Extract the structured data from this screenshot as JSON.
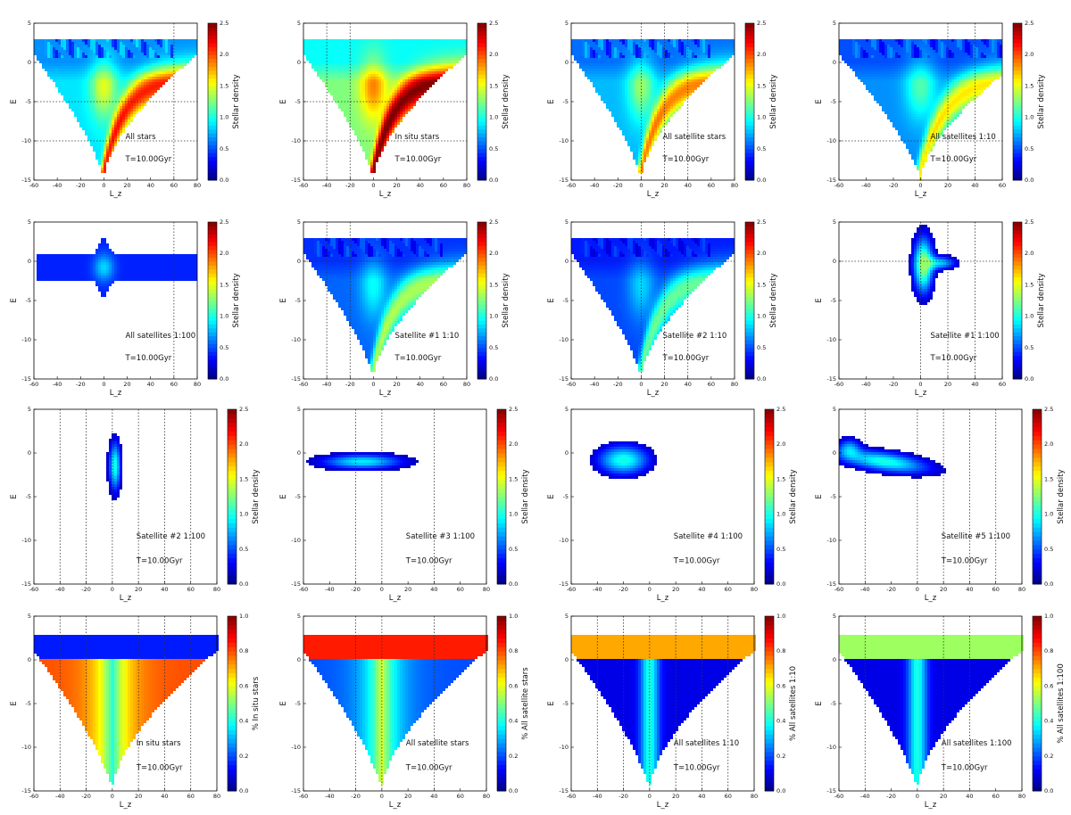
{
  "figure": {
    "chart_data": [
      {
        "type": "heatmap",
        "panel": 1,
        "title": "All stars",
        "time_label": "T=10.00Gyr",
        "xlabel": "L_z",
        "ylabel": "E",
        "xlim": [
          -60,
          80
        ],
        "ylim": [
          -15,
          5
        ],
        "xticks": [
          -60,
          -40,
          -20,
          0,
          20,
          40,
          60,
          80
        ],
        "yticks": [
          -15,
          -10,
          -5,
          0,
          5
        ],
        "colorbar_label": "Stellar density",
        "colorbar_range": [
          0,
          2.5
        ],
        "colorbar_ticks": [
          "0.0",
          "0.5",
          "1.0",
          "1.5",
          "2.0",
          "2.5"
        ],
        "vlines": [
          60
        ],
        "hlines": [
          -5,
          -10
        ],
        "shape": "fan",
        "bias": 0,
        "max_density": 2.5
      },
      {
        "type": "heatmap",
        "panel": 2,
        "title": "In situ stars",
        "time_label": "T=10.00Gyr",
        "xlabel": "L_z",
        "ylabel": "E",
        "xlim": [
          -60,
          80
        ],
        "ylim": [
          -15,
          5
        ],
        "xticks": [
          -60,
          -40,
          -20,
          0,
          20,
          40,
          60,
          80
        ],
        "yticks": [
          -15,
          -10,
          -5,
          0,
          5
        ],
        "colorbar_label": "Stellar density",
        "colorbar_range": [
          0,
          2.5
        ],
        "colorbar_ticks": [
          "0.0",
          "0.5",
          "1.0",
          "1.5",
          "2.0",
          "2.5"
        ],
        "vlines": [
          -40,
          -20
        ],
        "hlines": [
          -5,
          -10
        ],
        "shape": "fan-insitu",
        "bias": 0,
        "max_density": 2.5
      },
      {
        "type": "heatmap",
        "panel": 3,
        "title": "All satellite stars",
        "time_label": "T=10.00Gyr",
        "xlabel": "L_z",
        "ylabel": "E",
        "xlim": [
          -60,
          80
        ],
        "ylim": [
          -15,
          5
        ],
        "xticks": [
          -60,
          -40,
          -20,
          0,
          20,
          40,
          60,
          80
        ],
        "yticks": [
          -15,
          -10,
          -5,
          0,
          5
        ],
        "colorbar_label": "Stellar density",
        "colorbar_range": [
          0,
          2.5
        ],
        "colorbar_ticks": [
          "0.0",
          "0.5",
          "1.0",
          "1.5",
          "2.0",
          "2.5"
        ],
        "vlines": [
          0,
          20,
          40
        ],
        "hlines": [],
        "shape": "fan",
        "bias": 0,
        "max_density": 2.2
      },
      {
        "type": "heatmap",
        "panel": 4,
        "title": "All satellites 1:10",
        "time_label": "T=10.00Gyr",
        "xlabel": "L_z",
        "ylabel": "E",
        "xlim": [
          -60,
          60
        ],
        "ylim": [
          -15,
          5
        ],
        "xticks": [
          -60,
          -40,
          -20,
          0,
          20,
          40,
          60
        ],
        "yticks": [
          -15,
          -10,
          -5,
          0,
          5
        ],
        "colorbar_label": "Stellar density",
        "colorbar_range": [
          0,
          2.5
        ],
        "colorbar_ticks": [
          "0.0",
          "0.5",
          "1.0",
          "1.5",
          "2.0",
          "2.5"
        ],
        "vlines": [
          20,
          40
        ],
        "hlines": [
          -10
        ],
        "shape": "fan",
        "bias": 0,
        "max_density": 1.9
      },
      {
        "type": "heatmap",
        "panel": 5,
        "title": "All satellites 1:100",
        "time_label": "T=10.00Gyr",
        "xlabel": "L_z",
        "ylabel": "E",
        "xlim": [
          -60,
          80
        ],
        "ylim": [
          -15,
          5
        ],
        "xticks": [
          -60,
          -40,
          -20,
          0,
          20,
          40,
          60,
          80
        ],
        "yticks": [
          -15,
          -10,
          -5,
          0,
          5
        ],
        "colorbar_label": "Stellar density",
        "colorbar_range": [
          0,
          2.5
        ],
        "colorbar_ticks": [
          "0.0",
          "0.5",
          "1.0",
          "1.5",
          "2.0",
          "2.5"
        ],
        "vlines": [
          60
        ],
        "hlines": [],
        "shape": "band",
        "cx": 0,
        "cy": -0.8,
        "max_density": 1.3
      },
      {
        "type": "heatmap",
        "panel": 6,
        "title": "Satellite #1 1:10",
        "time_label": "T=10.00Gyr",
        "xlabel": "L_z",
        "ylabel": "E",
        "xlim": [
          -60,
          80
        ],
        "ylim": [
          -15,
          5
        ],
        "xticks": [
          -60,
          -40,
          -20,
          0,
          20,
          40,
          60,
          80
        ],
        "yticks": [
          -15,
          -10,
          -5,
          0,
          5
        ],
        "colorbar_label": "Stellar density",
        "colorbar_range": [
          0,
          2.5
        ],
        "colorbar_ticks": [
          "0.0",
          "0.5",
          "1.0",
          "1.5",
          "2.0",
          "2.5"
        ],
        "vlines": [
          -40,
          -20
        ],
        "hlines": [
          0
        ],
        "shape": "fan",
        "bias": 0,
        "max_density": 1.6
      },
      {
        "type": "heatmap",
        "panel": 7,
        "title": "Satellite #2 1:10",
        "time_label": "T=10.00Gyr",
        "xlabel": "L_z",
        "ylabel": "E",
        "xlim": [
          -60,
          80
        ],
        "ylim": [
          -15,
          5
        ],
        "xticks": [
          -60,
          -40,
          -20,
          0,
          20,
          40,
          60,
          80
        ],
        "yticks": [
          -15,
          -10,
          -5,
          0,
          5
        ],
        "colorbar_label": "Stellar density",
        "colorbar_range": [
          0,
          2.5
        ],
        "colorbar_ticks": [
          "0.0",
          "0.5",
          "1.0",
          "1.5",
          "2.0",
          "2.5"
        ],
        "vlines": [
          0,
          20,
          40
        ],
        "hlines": [
          0
        ],
        "shape": "fan",
        "bias": 0,
        "max_density": 1.4
      },
      {
        "type": "heatmap",
        "panel": 8,
        "title": "Satellite #1 1:100",
        "time_label": "T=10.00Gyr",
        "xlabel": "L_z",
        "ylabel": "E",
        "xlim": [
          -60,
          60
        ],
        "ylim": [
          -15,
          5
        ],
        "xticks": [
          -60,
          -40,
          -20,
          0,
          20,
          40,
          60
        ],
        "yticks": [
          -15,
          -10,
          -5,
          0,
          5
        ],
        "colorbar_label": "Stellar density",
        "colorbar_range": [
          0,
          2.5
        ],
        "colorbar_ticks": [
          "0.0",
          "0.5",
          "1.0",
          "1.5",
          "2.0",
          "2.5"
        ],
        "vlines": [
          0,
          20,
          40
        ],
        "hlines": [
          0
        ],
        "shape": "blob",
        "cx": 2,
        "cy": -0.5,
        "max_density": 1.3
      },
      {
        "type": "heatmap",
        "panel": 9,
        "title": "Satellite #2 1:100",
        "time_label": "T=10.00Gyr",
        "xlabel": "L_z",
        "ylabel": "E",
        "xlim": [
          -60,
          80
        ],
        "ylim": [
          -15,
          5
        ],
        "xticks": [
          -60,
          -40,
          -20,
          0,
          20,
          40,
          60,
          80
        ],
        "yticks": [
          -15,
          -10,
          -5,
          0,
          5
        ],
        "colorbar_label": "Stellar density",
        "colorbar_range": [
          0,
          2.5
        ],
        "colorbar_ticks": [
          "0.0",
          "0.5",
          "1.0",
          "1.5",
          "2.0",
          "2.5"
        ],
        "vlines": [
          -40,
          -20,
          0,
          20,
          40,
          60
        ],
        "hlines": [],
        "shape": "vblob",
        "cx": 2,
        "cy": -1.5,
        "max_density": 1.0
      },
      {
        "type": "heatmap",
        "panel": 10,
        "title": "Satellite #3 1:100",
        "time_label": "T=10.00Gyr",
        "xlabel": "L_z",
        "ylabel": "E",
        "xlim": [
          -60,
          80
        ],
        "ylim": [
          -15,
          5
        ],
        "xticks": [
          -60,
          -40,
          -20,
          0,
          20,
          40,
          60,
          80
        ],
        "yticks": [
          -15,
          -10,
          -5,
          0,
          5
        ],
        "colorbar_label": "Stellar density",
        "colorbar_range": [
          0,
          2.5
        ],
        "colorbar_ticks": [
          "0.0",
          "0.5",
          "1.0",
          "1.5",
          "2.0",
          "2.5"
        ],
        "vlines": [
          -20,
          0,
          40
        ],
        "hlines": [],
        "shape": "hblob",
        "cx": -15,
        "cy": -1.0,
        "max_density": 0.9
      },
      {
        "type": "heatmap",
        "panel": 11,
        "title": "Satellite #4 1:100",
        "time_label": "T=10.00Gyr",
        "xlabel": "L_z",
        "ylabel": "E",
        "xlim": [
          -60,
          80
        ],
        "ylim": [
          -15,
          5
        ],
        "xticks": [
          -60,
          -40,
          -20,
          0,
          20,
          40,
          60,
          80
        ],
        "yticks": [
          -15,
          -10,
          -5,
          0,
          5
        ],
        "colorbar_label": "Stellar density",
        "colorbar_range": [
          0,
          2.5
        ],
        "colorbar_ticks": [
          "0.0",
          "0.5",
          "1.0",
          "1.5",
          "2.0",
          "2.5"
        ],
        "vlines": [],
        "hlines": [],
        "shape": "ellipse",
        "cx": -20,
        "cy": -0.8,
        "max_density": 1.0
      },
      {
        "type": "heatmap",
        "panel": 12,
        "title": "Satellite #5 1:100",
        "time_label": "T=10.00Gyr",
        "xlabel": "L_z",
        "ylabel": "E",
        "xlim": [
          -60,
          80
        ],
        "ylim": [
          -15,
          5
        ],
        "xticks": [
          -60,
          -40,
          -20,
          0,
          20,
          40,
          60,
          80
        ],
        "yticks": [
          -15,
          -10,
          -5,
          0,
          5
        ],
        "colorbar_label": "Stellar density",
        "colorbar_range": [
          0,
          2.5
        ],
        "colorbar_ticks": [
          "0.0",
          "0.5",
          "1.0",
          "1.5",
          "2.0",
          "2.5"
        ],
        "vlines": [
          -40,
          0,
          20,
          40,
          60
        ],
        "hlines": [],
        "shape": "stream",
        "cx": -25,
        "cy": -1.0,
        "max_density": 1.0
      },
      {
        "type": "heatmap",
        "panel": 13,
        "title": "In situ stars",
        "time_label": "T=10.00Gyr",
        "xlabel": "L_z",
        "ylabel": "E",
        "xlim": [
          -60,
          80
        ],
        "ylim": [
          -15,
          5
        ],
        "xticks": [
          -60,
          -40,
          -20,
          0,
          20,
          40,
          60,
          80
        ],
        "yticks": [
          -15,
          -10,
          -5,
          0,
          5
        ],
        "colorbar_label": "% In situ stars",
        "colorbar_range": [
          0,
          1
        ],
        "colorbar_ticks": [
          "0.0",
          "0.2",
          "0.4",
          "0.6",
          "0.8",
          "1.0"
        ],
        "vlines": [
          -40,
          -20,
          20,
          40,
          60
        ],
        "hlines": [],
        "shape": "fraction",
        "bias": 1,
        "max_density": 1
      },
      {
        "type": "heatmap",
        "panel": 14,
        "title": "All satellite stars",
        "time_label": "T=10.00Gyr",
        "xlabel": "L_z",
        "ylabel": "E",
        "xlim": [
          -60,
          80
        ],
        "ylim": [
          -15,
          5
        ],
        "xticks": [
          -60,
          -40,
          -20,
          0,
          20,
          40,
          60,
          80
        ],
        "yticks": [
          -15,
          -10,
          -5,
          0,
          5
        ],
        "colorbar_label": "% All satellite stars",
        "colorbar_range": [
          0,
          1
        ],
        "colorbar_ticks": [
          "0.0",
          "0.2",
          "0.4",
          "0.6",
          "0.8",
          "1.0"
        ],
        "vlines": [
          -20,
          0,
          40
        ],
        "hlines": [],
        "shape": "fraction",
        "bias": -1,
        "max_density": 1
      },
      {
        "type": "heatmap",
        "panel": 15,
        "title": "All satellites 1:10",
        "time_label": "T=10.00Gyr",
        "xlabel": "L_z",
        "ylabel": "E",
        "xlim": [
          -60,
          80
        ],
        "ylim": [
          -15,
          5
        ],
        "xticks": [
          -60,
          -40,
          -20,
          0,
          20,
          40,
          60,
          80
        ],
        "yticks": [
          -15,
          -10,
          -5,
          0,
          5
        ],
        "colorbar_label": "% All satellites 1:10",
        "colorbar_range": [
          0,
          1
        ],
        "colorbar_ticks": [
          "0.0",
          "0.2",
          "0.4",
          "0.6",
          "0.8",
          "1.0"
        ],
        "vlines": [
          -40,
          -20,
          0,
          20,
          40,
          60
        ],
        "hlines": [],
        "shape": "fraction",
        "bias": -0.4,
        "max_density": 1
      },
      {
        "type": "heatmap",
        "panel": 16,
        "title": "All satellites 1:100",
        "time_label": "T=10.00Gyr",
        "xlabel": "L_z",
        "ylabel": "E",
        "xlim": [
          -60,
          80
        ],
        "ylim": [
          -15,
          5
        ],
        "xticks": [
          -60,
          -40,
          -20,
          0,
          20,
          40,
          60,
          80
        ],
        "yticks": [
          -15,
          -10,
          -5,
          0,
          5
        ],
        "colorbar_label": "% All satellites 1:100",
        "colorbar_range": [
          0,
          1
        ],
        "colorbar_ticks": [
          "0.0",
          "0.2",
          "0.4",
          "0.6",
          "0.8",
          "1.0"
        ],
        "vlines": [
          -40,
          20,
          40
        ],
        "hlines": [],
        "shape": "fraction",
        "bias": -0.7,
        "max_density": 1
      }
    ]
  }
}
